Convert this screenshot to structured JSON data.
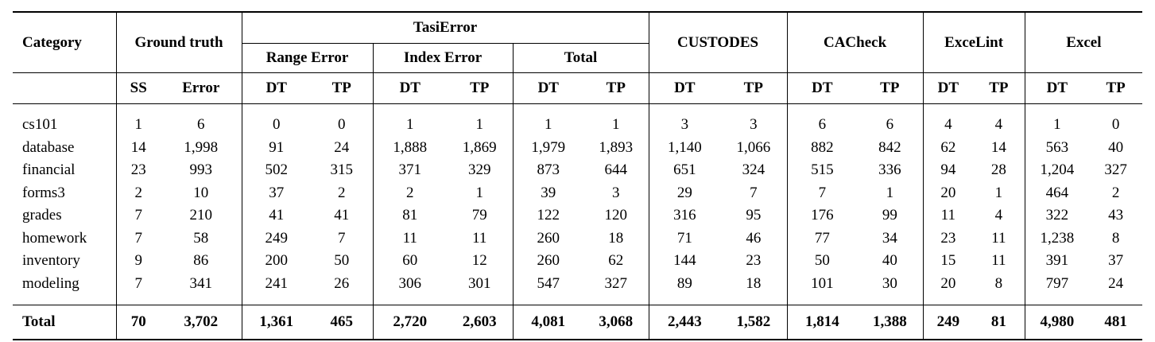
{
  "header": {
    "category": "Category",
    "ground_truth": "Ground truth",
    "tasierror": "TasiError",
    "range_error": "Range Error",
    "index_error": "Index Error",
    "total": "Total",
    "custodes": "CUSTODES",
    "cacheck": "CACheck",
    "excelint": "ExceLint",
    "excel": "Excel",
    "ss": "SS",
    "error": "Error",
    "dt": "DT",
    "tp": "TP"
  },
  "rows": [
    {
      "cat": "cs101",
      "v": [
        "1",
        "6",
        "0",
        "0",
        "1",
        "1",
        "1",
        "1",
        "3",
        "3",
        "6",
        "6",
        "4",
        "4",
        "1",
        "0"
      ]
    },
    {
      "cat": "database",
      "v": [
        "14",
        "1,998",
        "91",
        "24",
        "1,888",
        "1,869",
        "1,979",
        "1,893",
        "1,140",
        "1,066",
        "882",
        "842",
        "62",
        "14",
        "563",
        "40"
      ]
    },
    {
      "cat": "financial",
      "v": [
        "23",
        "993",
        "502",
        "315",
        "371",
        "329",
        "873",
        "644",
        "651",
        "324",
        "515",
        "336",
        "94",
        "28",
        "1,204",
        "327"
      ]
    },
    {
      "cat": "forms3",
      "v": [
        "2",
        "10",
        "37",
        "2",
        "2",
        "1",
        "39",
        "3",
        "29",
        "7",
        "7",
        "1",
        "20",
        "1",
        "464",
        "2"
      ]
    },
    {
      "cat": "grades",
      "v": [
        "7",
        "210",
        "41",
        "41",
        "81",
        "79",
        "122",
        "120",
        "316",
        "95",
        "176",
        "99",
        "11",
        "4",
        "322",
        "43"
      ]
    },
    {
      "cat": "homework",
      "v": [
        "7",
        "58",
        "249",
        "7",
        "11",
        "11",
        "260",
        "18",
        "71",
        "46",
        "77",
        "34",
        "23",
        "11",
        "1,238",
        "8"
      ]
    },
    {
      "cat": "inventory",
      "v": [
        "9",
        "86",
        "200",
        "50",
        "60",
        "12",
        "260",
        "62",
        "144",
        "23",
        "50",
        "40",
        "15",
        "11",
        "391",
        "37"
      ]
    },
    {
      "cat": "modeling",
      "v": [
        "7",
        "341",
        "241",
        "26",
        "306",
        "301",
        "547",
        "327",
        "89",
        "18",
        "101",
        "30",
        "20",
        "8",
        "797",
        "24"
      ]
    }
  ],
  "total_row": {
    "cat": "Total",
    "v": [
      "70",
      "3,702",
      "1,361",
      "465",
      "2,720",
      "2,603",
      "4,081",
      "3,068",
      "2,443",
      "1,582",
      "1,814",
      "1,388",
      "249",
      "81",
      "4,980",
      "481"
    ]
  }
}
